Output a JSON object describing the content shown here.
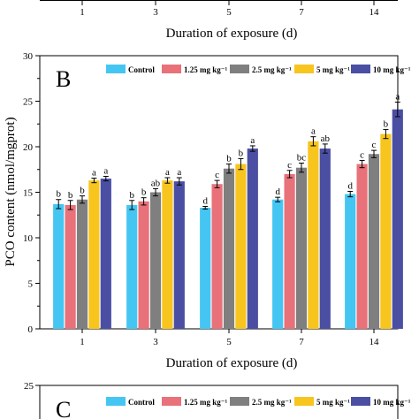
{
  "chart_data": [
    {
      "panel": "",
      "type": "bar",
      "xlabel": "Duration of exposure (d)",
      "categories": [
        "1",
        "3",
        "5",
        "7",
        "14"
      ],
      "partial": true
    },
    {
      "panel": "B",
      "type": "bar",
      "xlabel": "Duration of exposure (d)",
      "ylabel": "PCO content (nmol/mgprot)",
      "ylim": [
        0,
        30
      ],
      "yticks": [
        "0",
        "5",
        "10",
        "15",
        "20",
        "25",
        "30"
      ],
      "categories": [
        "1",
        "3",
        "5",
        "7",
        "14"
      ],
      "legend_position": "top",
      "series": [
        {
          "name": "Control",
          "color": "#45c6f2",
          "values": [
            13.7,
            13.6,
            13.3,
            14.2,
            14.8
          ],
          "errors": [
            0.5,
            0.5,
            0.15,
            0.25,
            0.3
          ],
          "letters": [
            "b",
            "b",
            "d",
            "d",
            "d"
          ]
        },
        {
          "name": "1.25 mg kg⁻¹",
          "color": "#e8717a",
          "values": [
            13.6,
            14.0,
            15.9,
            17.0,
            18.1
          ],
          "errors": [
            0.5,
            0.4,
            0.4,
            0.4,
            0.4
          ],
          "letters": [
            "b",
            "b",
            "c",
            "c",
            "c"
          ]
        },
        {
          "name": "2.5 mg kg⁻¹",
          "color": "#7f7f7f",
          "values": [
            14.2,
            15.0,
            17.6,
            17.7,
            19.2
          ],
          "errors": [
            0.4,
            0.4,
            0.5,
            0.5,
            0.4
          ],
          "letters": [
            "b",
            "ab",
            "b",
            "bc",
            "c"
          ]
        },
        {
          "name": "5 mg kg⁻¹",
          "color": "#f7c51e",
          "values": [
            16.3,
            16.3,
            18.1,
            20.6,
            21.4
          ],
          "errors": [
            0.25,
            0.3,
            0.6,
            0.5,
            0.5
          ],
          "letters": [
            "a",
            "a",
            "b",
            "a",
            "b"
          ]
        },
        {
          "name": "10 mg kg⁻¹",
          "color": "#4a4fa3",
          "values": [
            16.5,
            16.2,
            19.8,
            19.8,
            24.1
          ],
          "errors": [
            0.25,
            0.4,
            0.3,
            0.5,
            0.8
          ],
          "letters": [
            "a",
            "a",
            "a",
            "ab",
            "a"
          ]
        }
      ]
    },
    {
      "panel": "C",
      "type": "bar",
      "ylim": [
        0,
        25
      ],
      "yticks": [
        "25"
      ],
      "legend": [
        "Control",
        "1.25 mg kg⁻¹",
        "2.5 mg kg⁻¹",
        "5 mg kg⁻¹",
        "10 mg kg⁻¹"
      ],
      "partial": true
    }
  ]
}
